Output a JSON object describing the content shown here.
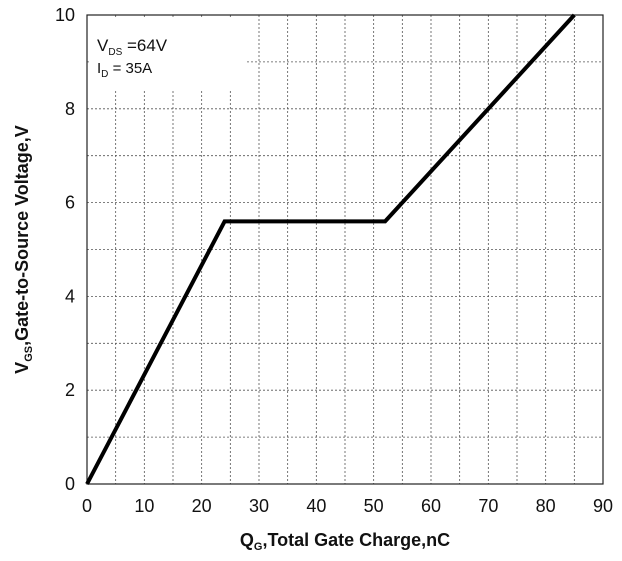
{
  "chart_data": {
    "type": "line",
    "xlabel": {
      "main": "Q",
      "sub": "G",
      "rest": ",Total Gate Charge,nC"
    },
    "ylabel": {
      "main": "V",
      "sub": "GS",
      "rest": ",Gate-to-Source Voltage,V"
    },
    "xlim": [
      0,
      90
    ],
    "ylim": [
      0,
      10
    ],
    "x_ticks": [
      0,
      10,
      20,
      30,
      40,
      50,
      60,
      70,
      80,
      90
    ],
    "y_ticks": [
      0,
      2,
      4,
      6,
      8,
      10
    ],
    "grid": true,
    "annotations": [
      {
        "main": "V",
        "sub": "DS",
        "rest": " =64V"
      },
      {
        "main": "I",
        "sub": "D",
        "rest": " = 35A"
      }
    ],
    "series": [
      {
        "x": [
          0,
          24,
          52,
          85
        ],
        "y": [
          0,
          5.6,
          5.6,
          10
        ]
      }
    ],
    "colors": {
      "line": "#000000",
      "grid": "#555555",
      "axis": "#222222"
    }
  }
}
